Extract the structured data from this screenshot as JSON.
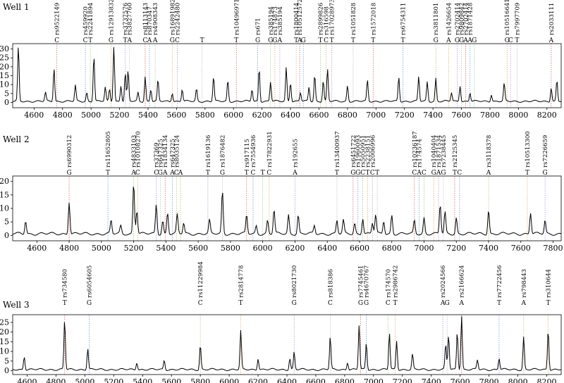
{
  "chart_data": [
    {
      "type": "line",
      "panel_label": "Well 1",
      "xlim": [
        4450,
        8300
      ],
      "ylim": [
        -3,
        33
      ],
      "xticks": [
        4600,
        4800,
        5000,
        5200,
        5400,
        5600,
        5800,
        6000,
        6200,
        6400,
        6600,
        6800,
        7000,
        7200,
        7400,
        7600,
        7800,
        8000,
        8200
      ],
      "yticks": [
        0,
        5,
        10,
        15,
        20,
        25,
        30
      ],
      "peaks": [
        [
          4490,
          31
        ],
        [
          4680,
          5
        ],
        [
          4740,
          19
        ],
        [
          4890,
          9
        ],
        [
          4970,
          5
        ],
        [
          5020,
          26
        ],
        [
          5100,
          8
        ],
        [
          5130,
          7
        ],
        [
          5160,
          31
        ],
        [
          5210,
          9
        ],
        [
          5240,
          16
        ],
        [
          5260,
          17
        ],
        [
          5330,
          5
        ],
        [
          5380,
          14
        ],
        [
          5420,
          7
        ],
        [
          5470,
          12
        ],
        [
          5570,
          5
        ],
        [
          5640,
          7
        ],
        [
          5740,
          7
        ],
        [
          5860,
          14
        ],
        [
          5960,
          12
        ],
        [
          6130,
          7
        ],
        [
          6180,
          19
        ],
        [
          6260,
          11
        ],
        [
          6370,
          19
        ],
        [
          6400,
          11
        ],
        [
          6470,
          5
        ],
        [
          6530,
          8
        ],
        [
          6570,
          15
        ],
        [
          6630,
          12
        ],
        [
          6660,
          18
        ],
        [
          6800,
          9
        ],
        [
          6940,
          12
        ],
        [
          7160,
          14
        ],
        [
          7300,
          14
        ],
        [
          7360,
          11
        ],
        [
          7420,
          13
        ],
        [
          7530,
          5
        ],
        [
          7590,
          9
        ],
        [
          7660,
          5
        ],
        [
          7810,
          4
        ],
        [
          7900,
          10
        ],
        [
          8230,
          8
        ],
        [
          8270,
          12
        ]
      ],
      "markers": [
        {
          "x": 4760,
          "snp": "rs9522149",
          "base": "C"
        },
        {
          "x": 4960,
          "snp": "rs459920",
          "base": "C"
        },
        {
          "x": 4995,
          "snp": "rs2241894",
          "base": "T"
        },
        {
          "x": 5140,
          "snp": "rs12913832",
          "base": "G"
        },
        {
          "x": 5240,
          "snp": "rs3737576",
          "base": "T"
        },
        {
          "x": 5270,
          "snp": "rs3827760",
          "base": "A"
        },
        {
          "x": 5380,
          "snp": "rs8113143",
          "base": "C"
        },
        {
          "x": 5410,
          "snp": "rs870347",
          "base": "A"
        },
        {
          "x": 5450,
          "snp": "rs4908343",
          "base": "A"
        },
        {
          "x": 5570,
          "snp": "rs16891982",
          "base": "G"
        },
        {
          "x": 5605,
          "snp": "rs2242480",
          "base": "C"
        },
        {
          "x": 5780,
          "snp": "",
          "base": "T"
        },
        {
          "x": 6020,
          "snp": "rs10496971",
          "base": "T"
        },
        {
          "x": 6170,
          "snp": "rs671",
          "base": "G"
        },
        {
          "x": 6260,
          "snp": "rs385194",
          "base": "G"
        },
        {
          "x": 6290,
          "snp": "rs174873",
          "base": "G"
        },
        {
          "x": 6325,
          "snp": "rs385194",
          "base": "A"
        },
        {
          "x": 6440,
          "snp": "rs1800414",
          "base": "T"
        },
        {
          "x": 6465,
          "snp": "rs10512572",
          "base": "A"
        },
        {
          "x": 6490,
          "snp": "",
          "base": "G"
        },
        {
          "x": 6610,
          "snp": "rs2899826",
          "base": "T"
        },
        {
          "x": 6650,
          "snp": "rs316598",
          "base": "C"
        },
        {
          "x": 6690,
          "snp": "rs17028973",
          "base": "T"
        },
        {
          "x": 6840,
          "snp": "rs1051828",
          "base": "T"
        },
        {
          "x": 6980,
          "snp": "rs1572018",
          "base": "T"
        },
        {
          "x": 7190,
          "snp": "rs6754311",
          "base": "T"
        },
        {
          "x": 7420,
          "snp": "rs3811801",
          "base": "G"
        },
        {
          "x": 7510,
          "snp": "rs1426654",
          "base": "A"
        },
        {
          "x": 7570,
          "snp": "rs2702414",
          "base": "G"
        },
        {
          "x": 7600,
          "snp": "rs9809842",
          "base": "G"
        },
        {
          "x": 7630,
          "snp": "rs2702414",
          "base": "A"
        },
        {
          "x": 7660,
          "snp": "rs1871428",
          "base": "A"
        },
        {
          "x": 7690,
          "snp": "",
          "base": "G"
        },
        {
          "x": 7920,
          "snp": "rs10516641",
          "base": "G"
        },
        {
          "x": 7945,
          "snp": "",
          "base": "C"
        },
        {
          "x": 7990,
          "snp": "rs7997709",
          "base": "T"
        },
        {
          "x": 8230,
          "snp": "rs2033111",
          "base": "A"
        }
      ]
    },
    {
      "type": "line",
      "panel_label": "Well 2",
      "xlim": [
        4450,
        7850
      ],
      "ylim": [
        -2,
        22
      ],
      "xticks": [
        4600,
        4800,
        5000,
        5200,
        5400,
        5600,
        5800,
        6000,
        6200,
        6400,
        6600,
        6800,
        7000,
        7200,
        7400,
        7600,
        7800
      ],
      "yticks": [
        0,
        5,
        10,
        15,
        20
      ],
      "peaks": [
        [
          4530,
          5
        ],
        [
          4800,
          12
        ],
        [
          5060,
          5
        ],
        [
          5120,
          3
        ],
        [
          5200,
          19
        ],
        [
          5220,
          9
        ],
        [
          5340,
          11
        ],
        [
          5380,
          5
        ],
        [
          5410,
          8
        ],
        [
          5470,
          7
        ],
        [
          5510,
          4
        ],
        [
          5670,
          5
        ],
        [
          5750,
          16
        ],
        [
          5900,
          7
        ],
        [
          5960,
          3
        ],
        [
          6030,
          5
        ],
        [
          6070,
          9
        ],
        [
          6160,
          7
        ],
        [
          6220,
          7
        ],
        [
          6320,
          3
        ],
        [
          6460,
          5
        ],
        [
          6500,
          5
        ],
        [
          6570,
          4
        ],
        [
          6620,
          6
        ],
        [
          6680,
          4
        ],
        [
          6700,
          7
        ],
        [
          6750,
          5
        ],
        [
          6800,
          7
        ],
        [
          6940,
          5
        ],
        [
          7000,
          6
        ],
        [
          7100,
          11
        ],
        [
          7130,
          8
        ],
        [
          7200,
          6
        ],
        [
          7400,
          9
        ],
        [
          7660,
          8
        ],
        [
          7750,
          5
        ]
      ],
      "markers": [
        {
          "x": 4800,
          "snp": "rs6990312",
          "base": "G"
        },
        {
          "x": 5040,
          "snp": "rs11652805",
          "base": "T"
        },
        {
          "x": 5200,
          "snp": "rs4833103",
          "base": "A"
        },
        {
          "x": 5225,
          "snp": "rs10108270",
          "base": "C"
        },
        {
          "x": 5340,
          "snp": "rs37369",
          "base": "C"
        },
        {
          "x": 5365,
          "snp": "rs647325",
          "base": "G"
        },
        {
          "x": 5395,
          "snp": "rs1834134",
          "base": "A"
        },
        {
          "x": 5440,
          "snp": "rs647325",
          "base": "A"
        },
        {
          "x": 5465,
          "snp": "rs8035124",
          "base": "C"
        },
        {
          "x": 5490,
          "snp": "",
          "base": "A"
        },
        {
          "x": 5660,
          "snp": "rs1619136",
          "base": "T"
        },
        {
          "x": 5750,
          "snp": "rs1876482",
          "base": "G"
        },
        {
          "x": 5900,
          "snp": "rs917115",
          "base": "T"
        },
        {
          "x": 5940,
          "snp": "rs7554936",
          "base": "C"
        },
        {
          "x": 6000,
          "snp": "",
          "base": "T"
        },
        {
          "x": 6040,
          "snp": "rs17822931",
          "base": "C"
        },
        {
          "x": 6200,
          "snp": "rs192655",
          "base": "A"
        },
        {
          "x": 6460,
          "snp": "rs13400937",
          "base": "T"
        },
        {
          "x": 6560,
          "snp": "rs6451722",
          "base": "G"
        },
        {
          "x": 6590,
          "snp": "rs1960093",
          "base": "G"
        },
        {
          "x": 6620,
          "snp": "rs5050951",
          "base": "C"
        },
        {
          "x": 6650,
          "snp": "rs2238151",
          "base": "T"
        },
        {
          "x": 6680,
          "snp": "rs2006996",
          "base": "C"
        },
        {
          "x": 6710,
          "snp": "",
          "base": "T"
        },
        {
          "x": 6940,
          "snp": "rs10236187",
          "base": "C"
        },
        {
          "x": 6970,
          "snp": "rs174574",
          "base": "A"
        },
        {
          "x": 7000,
          "snp": "",
          "base": "C"
        },
        {
          "x": 7060,
          "snp": "rs1040404",
          "base": "G"
        },
        {
          "x": 7090,
          "snp": "rs1871534",
          "base": "A"
        },
        {
          "x": 7120,
          "snp": "rs7238445",
          "base": "G"
        },
        {
          "x": 7190,
          "snp": "rs2125345",
          "base": "T"
        },
        {
          "x": 7220,
          "snp": "",
          "base": "C"
        },
        {
          "x": 7400,
          "snp": "rs3118378",
          "base": "A"
        },
        {
          "x": 7640,
          "snp": "rs10513300",
          "base": "T"
        },
        {
          "x": 7750,
          "snp": "rs7226659",
          "base": "G"
        }
      ]
    },
    {
      "type": "line",
      "panel_label": "Well 3",
      "xlim": [
        4500,
        8300
      ],
      "ylim": [
        -2,
        29
      ],
      "xticks": [
        4600,
        4800,
        5000,
        5200,
        5400,
        5600,
        5800,
        6000,
        6200,
        6400,
        6600,
        6800,
        7000,
        7200,
        7400,
        7600,
        7800,
        8000,
        8200
      ],
      "yticks": [
        0,
        5,
        10,
        15,
        20,
        25
      ],
      "peaks": [
        [
          4580,
          7
        ],
        [
          4860,
          26
        ],
        [
          5020,
          11
        ],
        [
          5360,
          4
        ],
        [
          5550,
          5
        ],
        [
          5800,
          13
        ],
        [
          6080,
          20
        ],
        [
          6200,
          6
        ],
        [
          6420,
          6
        ],
        [
          6450,
          9
        ],
        [
          6700,
          17
        ],
        [
          6820,
          4
        ],
        [
          6900,
          23
        ],
        [
          6950,
          14
        ],
        [
          7110,
          19
        ],
        [
          7160,
          15
        ],
        [
          7270,
          8
        ],
        [
          7500,
          13
        ],
        [
          7520,
          18
        ],
        [
          7580,
          20
        ],
        [
          7610,
          28
        ],
        [
          7720,
          5
        ],
        [
          7870,
          6
        ],
        [
          8040,
          17
        ],
        [
          8210,
          21
        ]
      ],
      "markers": [
        {
          "x": 4860,
          "snp": "rs734580",
          "base": "T"
        },
        {
          "x": 5030,
          "snp": "rs6054605",
          "base": "G"
        },
        {
          "x": 5800,
          "snp": "rs11229984",
          "base": "C"
        },
        {
          "x": 6080,
          "snp": "rs2814778",
          "base": "T"
        },
        {
          "x": 6450,
          "snp": "rs8021730",
          "base": "G"
        },
        {
          "x": 6700,
          "snp": "rs818386",
          "base": "C"
        },
        {
          "x": 6910,
          "snp": "rs7745461",
          "base": "G"
        },
        {
          "x": 6950,
          "snp": "rs4670767",
          "base": "G"
        },
        {
          "x": 7100,
          "snp": "rs174570",
          "base": "C"
        },
        {
          "x": 7150,
          "snp": "rs2986742",
          "base": "T"
        },
        {
          "x": 7480,
          "snp": "rs2024566",
          "base": "A"
        },
        {
          "x": 7510,
          "snp": "",
          "base": "G"
        },
        {
          "x": 7610,
          "snp": "rs2166624",
          "base": "A"
        },
        {
          "x": 7870,
          "snp": "rs7722456",
          "base": "T"
        },
        {
          "x": 8040,
          "snp": "rs798443",
          "base": "A"
        },
        {
          "x": 8210,
          "snp": "rs310644",
          "base": "T"
        }
      ]
    }
  ]
}
